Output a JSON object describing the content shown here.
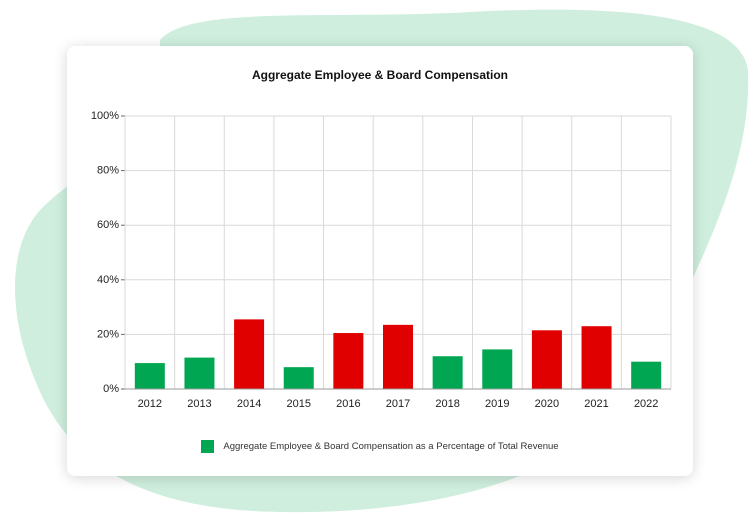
{
  "colors": {
    "background_blob": "#cfeedd",
    "positive": "#00a651",
    "negative": "#e00000",
    "grid": "#d9d9d9",
    "axis_text": "#222222"
  },
  "chart_data": {
    "type": "bar",
    "title": "Aggregate Employee & Board Compensation",
    "xlabel": "",
    "ylabel": "",
    "ylim": [
      0,
      100
    ],
    "yticks": [
      "0%",
      "20%",
      "40%",
      "60%",
      "80%",
      "100%"
    ],
    "ytick_values": [
      0,
      20,
      40,
      60,
      80,
      100
    ],
    "categories": [
      "2012",
      "2013",
      "2014",
      "2015",
      "2016",
      "2017",
      "2018",
      "2019",
      "2020",
      "2021",
      "2022"
    ],
    "values": [
      9.5,
      11.5,
      25.5,
      8,
      20.5,
      23.5,
      12,
      14.5,
      21.5,
      23,
      10
    ],
    "bar_colors": [
      "positive",
      "positive",
      "negative",
      "positive",
      "negative",
      "negative",
      "positive",
      "positive",
      "negative",
      "negative",
      "positive"
    ],
    "series_name": "Aggregate Employee & Board Compensation as a Percentage of Total Revenue",
    "legend_position": "bottom-center",
    "grid": true
  }
}
